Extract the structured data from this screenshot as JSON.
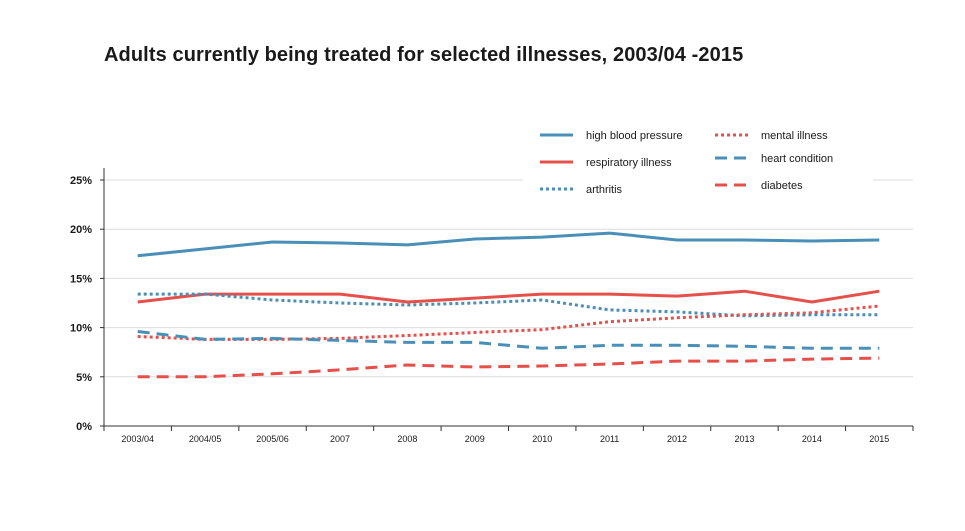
{
  "title": "Adults currently being treated for selected illnesses, 2003/04 -2015",
  "chart_data": {
    "type": "line",
    "title": "Adults currently being treated for selected illnesses, 2003/04 -2015",
    "xlabel": "",
    "ylabel": "",
    "ylim": [
      0,
      25
    ],
    "yticks": [
      0,
      5,
      10,
      15,
      20,
      25
    ],
    "ytick_labels": [
      "0%",
      "5%",
      "10%",
      "15%",
      "20%",
      "25%"
    ],
    "grid": true,
    "legend_position": "top-right",
    "categories": [
      "2003/04",
      "2004/05",
      "2005/06",
      "2007",
      "2008",
      "2009",
      "2010",
      "2011",
      "2012",
      "2013",
      "2014",
      "2015"
    ],
    "series": [
      {
        "name": "high blood pressure",
        "color": "#4a8fb8",
        "style": "solid",
        "values": [
          17.3,
          18.0,
          18.7,
          18.6,
          18.4,
          19.0,
          19.2,
          19.6,
          18.9,
          18.9,
          18.8,
          18.9
        ]
      },
      {
        "name": "respiratory illness",
        "color": "#e5504b",
        "style": "solid",
        "values": [
          12.6,
          13.4,
          13.4,
          13.4,
          12.6,
          13.0,
          13.4,
          13.4,
          13.2,
          13.7,
          12.6,
          13.7
        ]
      },
      {
        "name": "arthritis",
        "color": "#4a8fb8",
        "style": "dotted",
        "values": [
          13.4,
          13.4,
          12.8,
          12.5,
          12.3,
          12.5,
          12.8,
          11.8,
          11.6,
          11.2,
          11.3,
          11.3
        ]
      },
      {
        "name": "mental illness",
        "color": "#e5504b",
        "style": "dotted",
        "values": [
          9.1,
          8.8,
          8.8,
          8.9,
          9.2,
          9.5,
          9.8,
          10.6,
          11.0,
          11.3,
          11.5,
          12.2
        ]
      },
      {
        "name": "heart condition",
        "color": "#4a8fb8",
        "style": "dashed",
        "values": [
          9.6,
          8.8,
          8.9,
          8.7,
          8.5,
          8.5,
          7.9,
          8.2,
          8.2,
          8.1,
          7.9,
          7.9
        ]
      },
      {
        "name": "diabetes",
        "color": "#e5504b",
        "style": "dashed",
        "values": [
          5.0,
          5.0,
          5.3,
          5.7,
          6.2,
          6.0,
          6.1,
          6.3,
          6.6,
          6.6,
          6.8,
          6.9
        ]
      }
    ]
  }
}
